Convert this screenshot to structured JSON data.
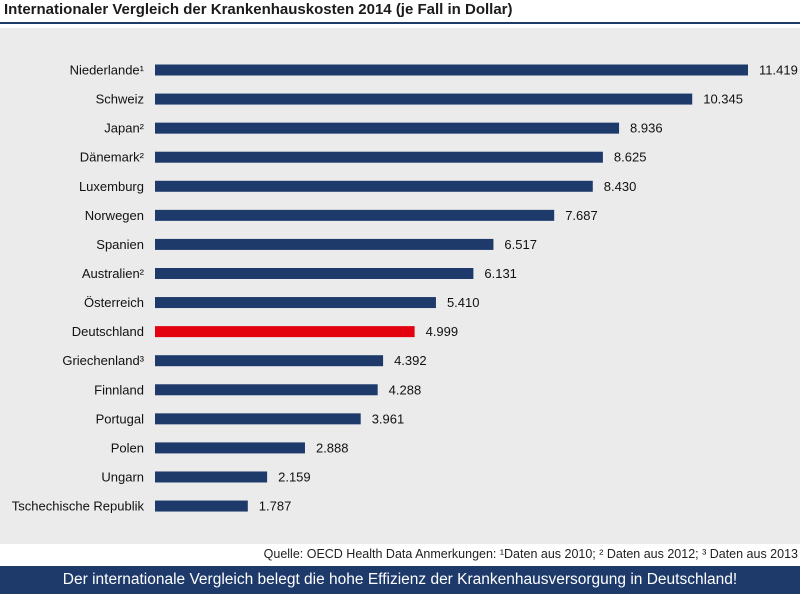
{
  "title": "Internationaler Vergleich der Krankenhauskosten 2014 (je Fall in Dollar)",
  "source_note": "Quelle: OECD Health Data     Anmerkungen: ¹Daten aus 2010; ² Daten aus 2012; ³ Daten aus 2013",
  "banner": "Der internationale Vergleich belegt die hohe Effizienz der Krankenhausversorgung in Deutschland!",
  "colors": {
    "bar": "#1d3a6b",
    "highlight": "#e3000f",
    "background": "#ebebeb"
  },
  "chart_data": {
    "type": "bar",
    "orientation": "horizontal",
    "title": "Internationaler Vergleich der Krankenhauskosten 2014 (je Fall in Dollar)",
    "xlabel": "",
    "ylabel": "",
    "xlim": [
      0,
      11419
    ],
    "grid": false,
    "legend": false,
    "categories": [
      "Niederlande¹",
      "Schweiz",
      "Japan²",
      "Dänemark²",
      "Luxemburg",
      "Norwegen",
      "Spanien",
      "Australien²",
      "Österreich",
      "Deutschland",
      "Griechenland³",
      "Finnland",
      "Portugal",
      "Polen",
      "Ungarn",
      "Tschechische Republik"
    ],
    "values": [
      11419,
      10345,
      8936,
      8625,
      8430,
      7687,
      6517,
      6131,
      5410,
      4999,
      4392,
      4288,
      3961,
      2888,
      2159,
      1787
    ],
    "value_labels": [
      "11.419",
      "10.345",
      "8.936",
      "8.625",
      "8.430",
      "7.687",
      "6.517",
      "6.131",
      "5.410",
      "4.999",
      "4.392",
      "4.288",
      "3.961",
      "2.888",
      "2.159",
      "1.787"
    ],
    "highlighted": [
      "Deutschland"
    ]
  }
}
